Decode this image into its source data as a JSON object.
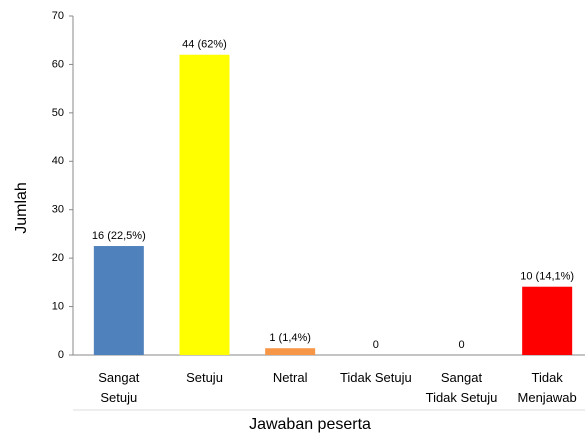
{
  "chart_data": {
    "type": "bar",
    "y_label": "Jumlah",
    "x_label": "Jawaban peserta",
    "categories": [
      "Sangat\nSetuju",
      "Setuju",
      "Netral",
      "Tidak Setuju",
      "Sangat\nTidak Setuju",
      "Tidak\nMenjawab"
    ],
    "values": [
      22.5,
      62,
      1.4,
      0,
      0,
      14.1
    ],
    "value_labels": [
      "16 (22,5%)",
      "44 (62%)",
      "1 (1,4%)",
      "0",
      "0",
      "10 (14,1%)"
    ],
    "colors": [
      "#4f81bd",
      "#ffff00",
      "#f79646",
      null,
      null,
      "#ff0000"
    ],
    "ylim": [
      0,
      70
    ],
    "yticks": [
      0,
      10,
      20,
      30,
      40,
      50,
      60,
      70
    ],
    "grid": false
  }
}
